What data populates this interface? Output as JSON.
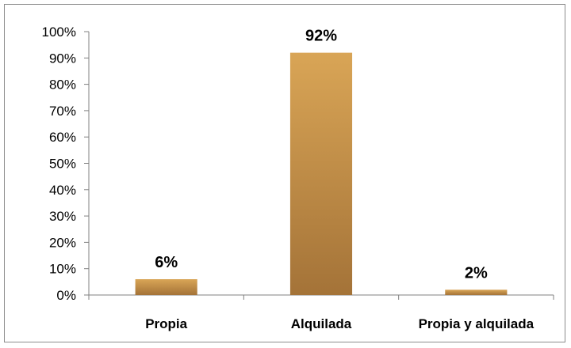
{
  "chart_data": {
    "type": "bar",
    "categories": [
      "Propia",
      "Alquilada",
      "Propia y alquilada"
    ],
    "values": [
      6,
      92,
      2
    ],
    "data_labels": [
      "6%",
      "92%",
      "2%"
    ],
    "y_tick_labels": [
      "0%",
      "10%",
      "20%",
      "30%",
      "40%",
      "50%",
      "60%",
      "70%",
      "80%",
      "90%",
      "100%"
    ],
    "ylim": [
      0,
      100
    ],
    "title": "",
    "xlabel": "",
    "ylabel": "",
    "grid": false,
    "legend": "none",
    "colors": {
      "bar_light": "#d9a556",
      "bar_dark": "#a47338",
      "axis": "#808080",
      "frame": "#8c8c8c"
    }
  }
}
